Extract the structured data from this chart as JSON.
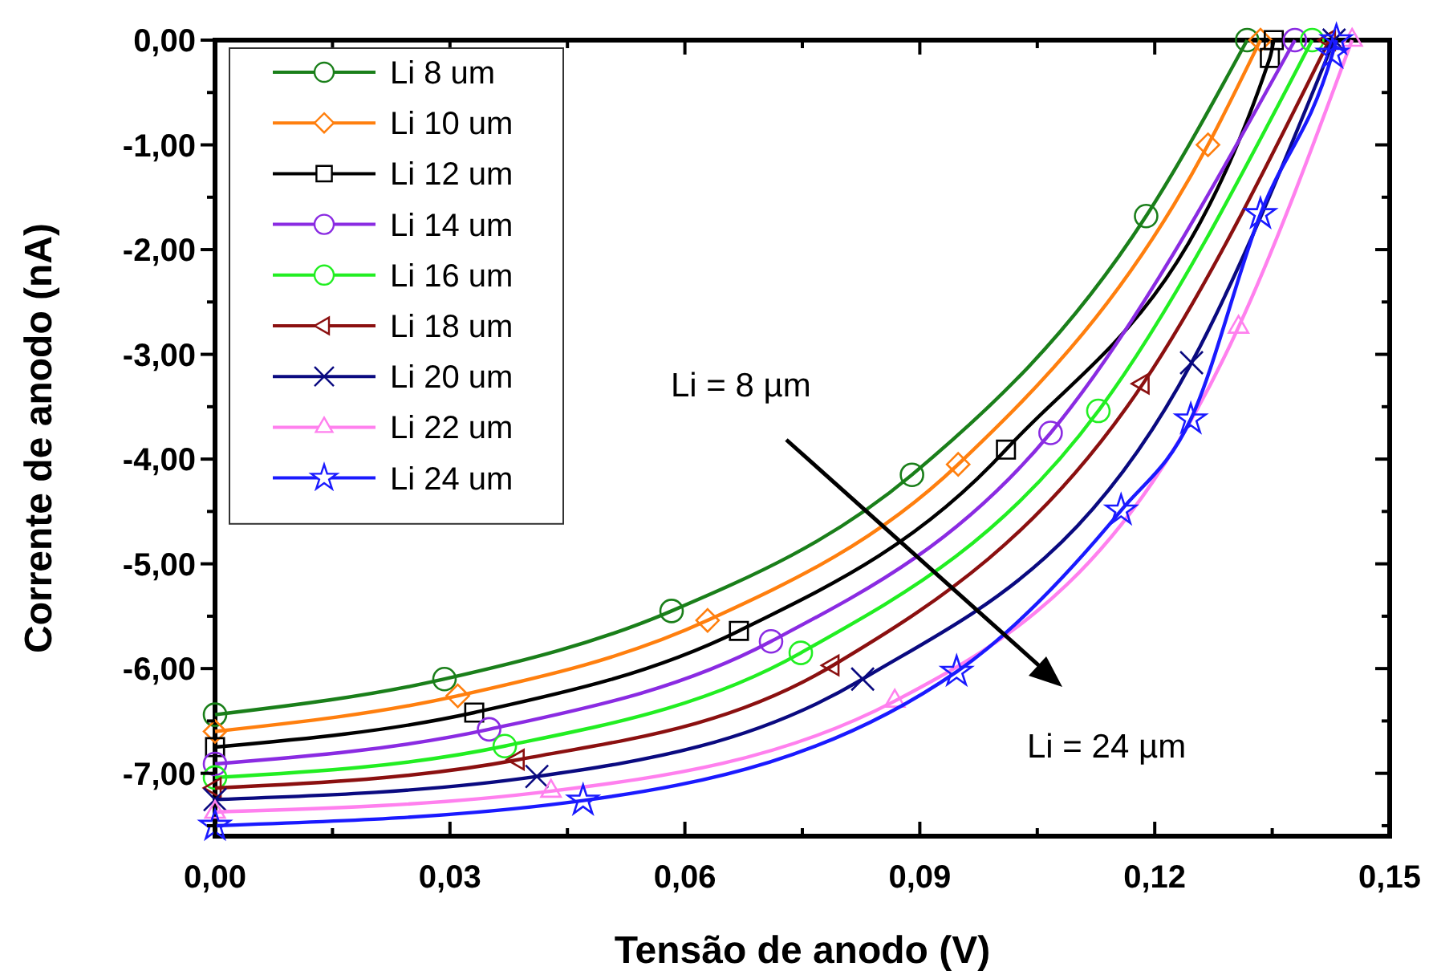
{
  "chart_data": {
    "type": "line",
    "xlabel": "Tensão de anodo (V)",
    "ylabel": "Corrente de anodo (nA)",
    "xlim": [
      0,
      0.15
    ],
    "ylim": [
      -7.6,
      0
    ],
    "xticks": [
      {
        "value": 0,
        "label": "0,00"
      },
      {
        "value": 0.03,
        "label": "0,03"
      },
      {
        "value": 0.06,
        "label": "0,06"
      },
      {
        "value": 0.09,
        "label": "0,09"
      },
      {
        "value": 0.12,
        "label": "0,12"
      },
      {
        "value": 0.15,
        "label": "0,15"
      }
    ],
    "yticks": [
      {
        "value": 0,
        "label": "0,00"
      },
      {
        "value": -1,
        "label": "-1,00"
      },
      {
        "value": -2,
        "label": "-2,00"
      },
      {
        "value": -3,
        "label": "-3,00"
      },
      {
        "value": -4,
        "label": "-4,00"
      },
      {
        "value": -5,
        "label": "-5,00"
      },
      {
        "value": -6,
        "label": "-6,00"
      },
      {
        "value": -7,
        "label": "-7,00"
      }
    ],
    "grid": false,
    "legend": "top left",
    "line_style": "solid",
    "annotations": [
      "Li = 8 µm",
      "Li = 24 µm"
    ],
    "series": [
      {
        "name": "Li 8 um",
        "color": "#1a7f1a",
        "marker": "circle",
        "x": [
          0,
          0.0293,
          0.0583,
          0.089,
          0.1189,
          0.1318
        ],
        "values": [
          -6.44,
          -6.1,
          -5.45,
          -4.15,
          -1.68,
          0
        ]
      },
      {
        "name": "Li 10 um",
        "color": "#ff7f0e",
        "marker": "diamond",
        "x": [
          0,
          0.031,
          0.0629,
          0.0949,
          0.1268,
          0.1335
        ],
        "values": [
          -6.6,
          -6.26,
          -5.54,
          -4.05,
          -1.0,
          0
        ]
      },
      {
        "name": "Li 12 um",
        "color": "#000000",
        "marker": "square",
        "x": [
          0,
          0.0331,
          0.0669,
          0.101,
          0.1347,
          0.1352
        ],
        "values": [
          -6.75,
          -6.42,
          -5.64,
          -3.91,
          -0.17,
          0
        ]
      },
      {
        "name": "Li 14 um",
        "color": "#8a2be2",
        "marker": "circle",
        "x": [
          0,
          0.035,
          0.071,
          0.1067,
          0.1379
        ],
        "values": [
          -6.91,
          -6.58,
          -5.74,
          -3.75,
          0
        ]
      },
      {
        "name": "Li 16 um",
        "color": "#22ee22",
        "marker": "circle",
        "x": [
          0,
          0.037,
          0.0748,
          0.1128,
          0.1401
        ],
        "values": [
          -7.04,
          -6.74,
          -5.85,
          -3.54,
          0
        ]
      },
      {
        "name": "Li 18 um",
        "color": "#8b1010",
        "marker": "triangle-left",
        "x": [
          0,
          0.0387,
          0.0789,
          0.1185,
          0.1423
        ],
        "values": [
          -7.14,
          -6.87,
          -5.97,
          -3.28,
          0
        ]
      },
      {
        "name": "Li 20 um",
        "color": "#0a0a80",
        "marker": "cross",
        "x": [
          0,
          0.0411,
          0.0827,
          0.1247,
          0.1429
        ],
        "values": [
          -7.25,
          -7.03,
          -6.1,
          -3.08,
          0
        ]
      },
      {
        "name": "Li 22 um",
        "color": "#ff80ee",
        "marker": "triangle",
        "x": [
          0,
          0.0429,
          0.0868,
          0.1307,
          0.1452
        ],
        "values": [
          -7.37,
          -7.17,
          -6.31,
          -2.74,
          0
        ]
      },
      {
        "name": "Li 24 um",
        "color": "#1a1aff",
        "marker": "star",
        "x": [
          0,
          0.047,
          0.0947,
          0.1157,
          0.1246,
          0.1335,
          0.1427,
          0.1432
        ],
        "values": [
          -7.5,
          -7.26,
          -6.03,
          -4.49,
          -3.62,
          -1.66,
          -0.13,
          0
        ]
      }
    ]
  }
}
